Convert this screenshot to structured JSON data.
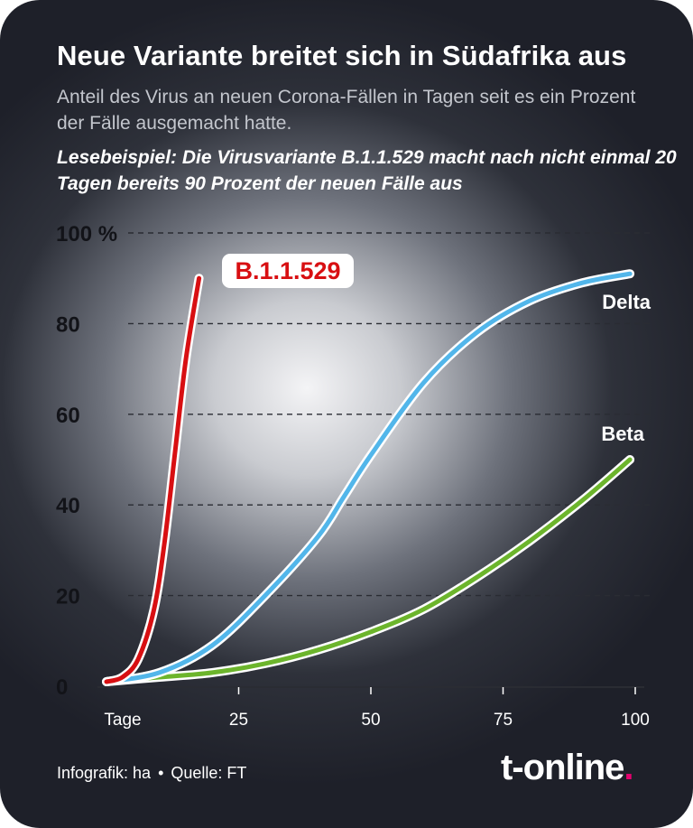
{
  "title": "Neue Variante breitet sich in Südafrika aus",
  "subtitle": "Anteil des Virus an neuen Corona-Fällen in Tagen seit es ein Prozent der Fälle ausgemacht hatte.",
  "note": "Lesebeispiel: Die Virusvariante B.1.1.529 macht nach nicht einmal 20 Tagen bereits 90 Prozent der neuen Fälle aus",
  "footer": {
    "credit": "Infografik: ha",
    "separator": "•",
    "source": "Quelle: FT"
  },
  "logo": {
    "text": "t-online",
    "dot": "."
  },
  "colors": {
    "b11529": "#d80f12",
    "delta": "#52b6ea",
    "beta": "#6cb52c"
  },
  "chart_data": {
    "type": "line",
    "xlabel": "Tage",
    "ylabel": "",
    "xlim": [
      0,
      100
    ],
    "ylim": [
      0,
      100
    ],
    "x_ticks": [
      25,
      50,
      75,
      100
    ],
    "y_ticks": [
      "0",
      "20",
      "40",
      "60",
      "80",
      "100 %"
    ],
    "y_tick_values": [
      0,
      20,
      40,
      60,
      80,
      100
    ],
    "grid": "horizontal dashed",
    "series": [
      {
        "name": "B.1.1.529",
        "color": "#d80f12",
        "x": [
          0,
          3,
          6,
          9,
          11,
          13,
          15,
          17.5
        ],
        "y": [
          1,
          2,
          6,
          17,
          32,
          52,
          72,
          90
        ]
      },
      {
        "name": "Delta",
        "color": "#52b6ea",
        "x": [
          0,
          10,
          20,
          30,
          40,
          45,
          50,
          60,
          70,
          80,
          90,
          99
        ],
        "y": [
          1,
          3,
          9,
          20,
          33,
          42,
          51,
          67,
          78,
          85,
          89,
          91
        ]
      },
      {
        "name": "Beta",
        "color": "#6cb52c",
        "x": [
          0,
          10,
          20,
          30,
          40,
          50,
          60,
          70,
          80,
          90,
          99
        ],
        "y": [
          1,
          2,
          3,
          5,
          8,
          12,
          17,
          24,
          32,
          41,
          50
        ]
      }
    ]
  }
}
